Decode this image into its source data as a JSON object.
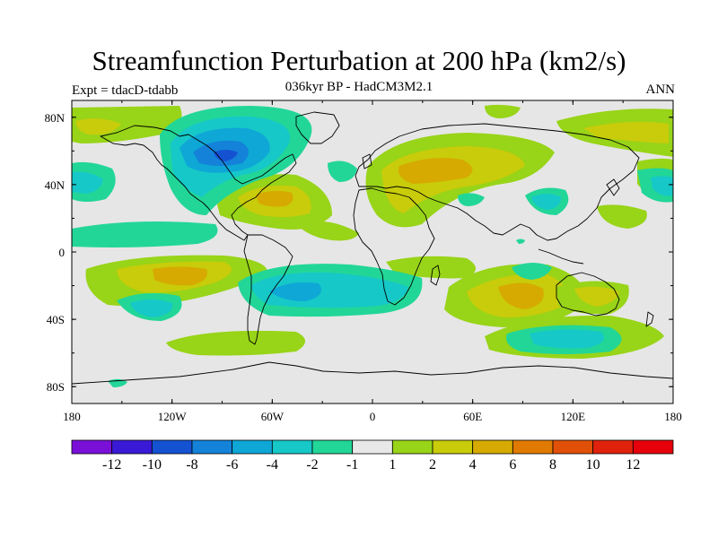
{
  "header": {
    "title": "Streamfunction Perturbation at 200 hPa (km2/s)",
    "left": "Expt = tdacD-tdabb",
    "center": "036kyr BP - HadCM3M2.1",
    "right": "ANN"
  },
  "axes": {
    "lon_labels": [
      "180",
      "120W",
      "60W",
      "0",
      "60E",
      "120E",
      "180"
    ],
    "lat_labels": [
      "80N",
      "40N",
      "0",
      "40S",
      "80S"
    ]
  },
  "colorbar": {
    "colors": [
      "#7a10d8",
      "#3a1ad6",
      "#1452d2",
      "#1482d8",
      "#0ea7d6",
      "#16c8c8",
      "#22d698",
      "#e8e8e8",
      "#98d418",
      "#c8cc0a",
      "#d6aa00",
      "#e07a00",
      "#e05008",
      "#e0220c",
      "#e6000a"
    ],
    "labels": [
      "-12",
      "-10",
      "-8",
      "-6",
      "-4",
      "-2",
      "-1",
      "1",
      "2",
      "4",
      "6",
      "8",
      "10",
      "12"
    ]
  },
  "map_background": "#e6e6e6"
}
